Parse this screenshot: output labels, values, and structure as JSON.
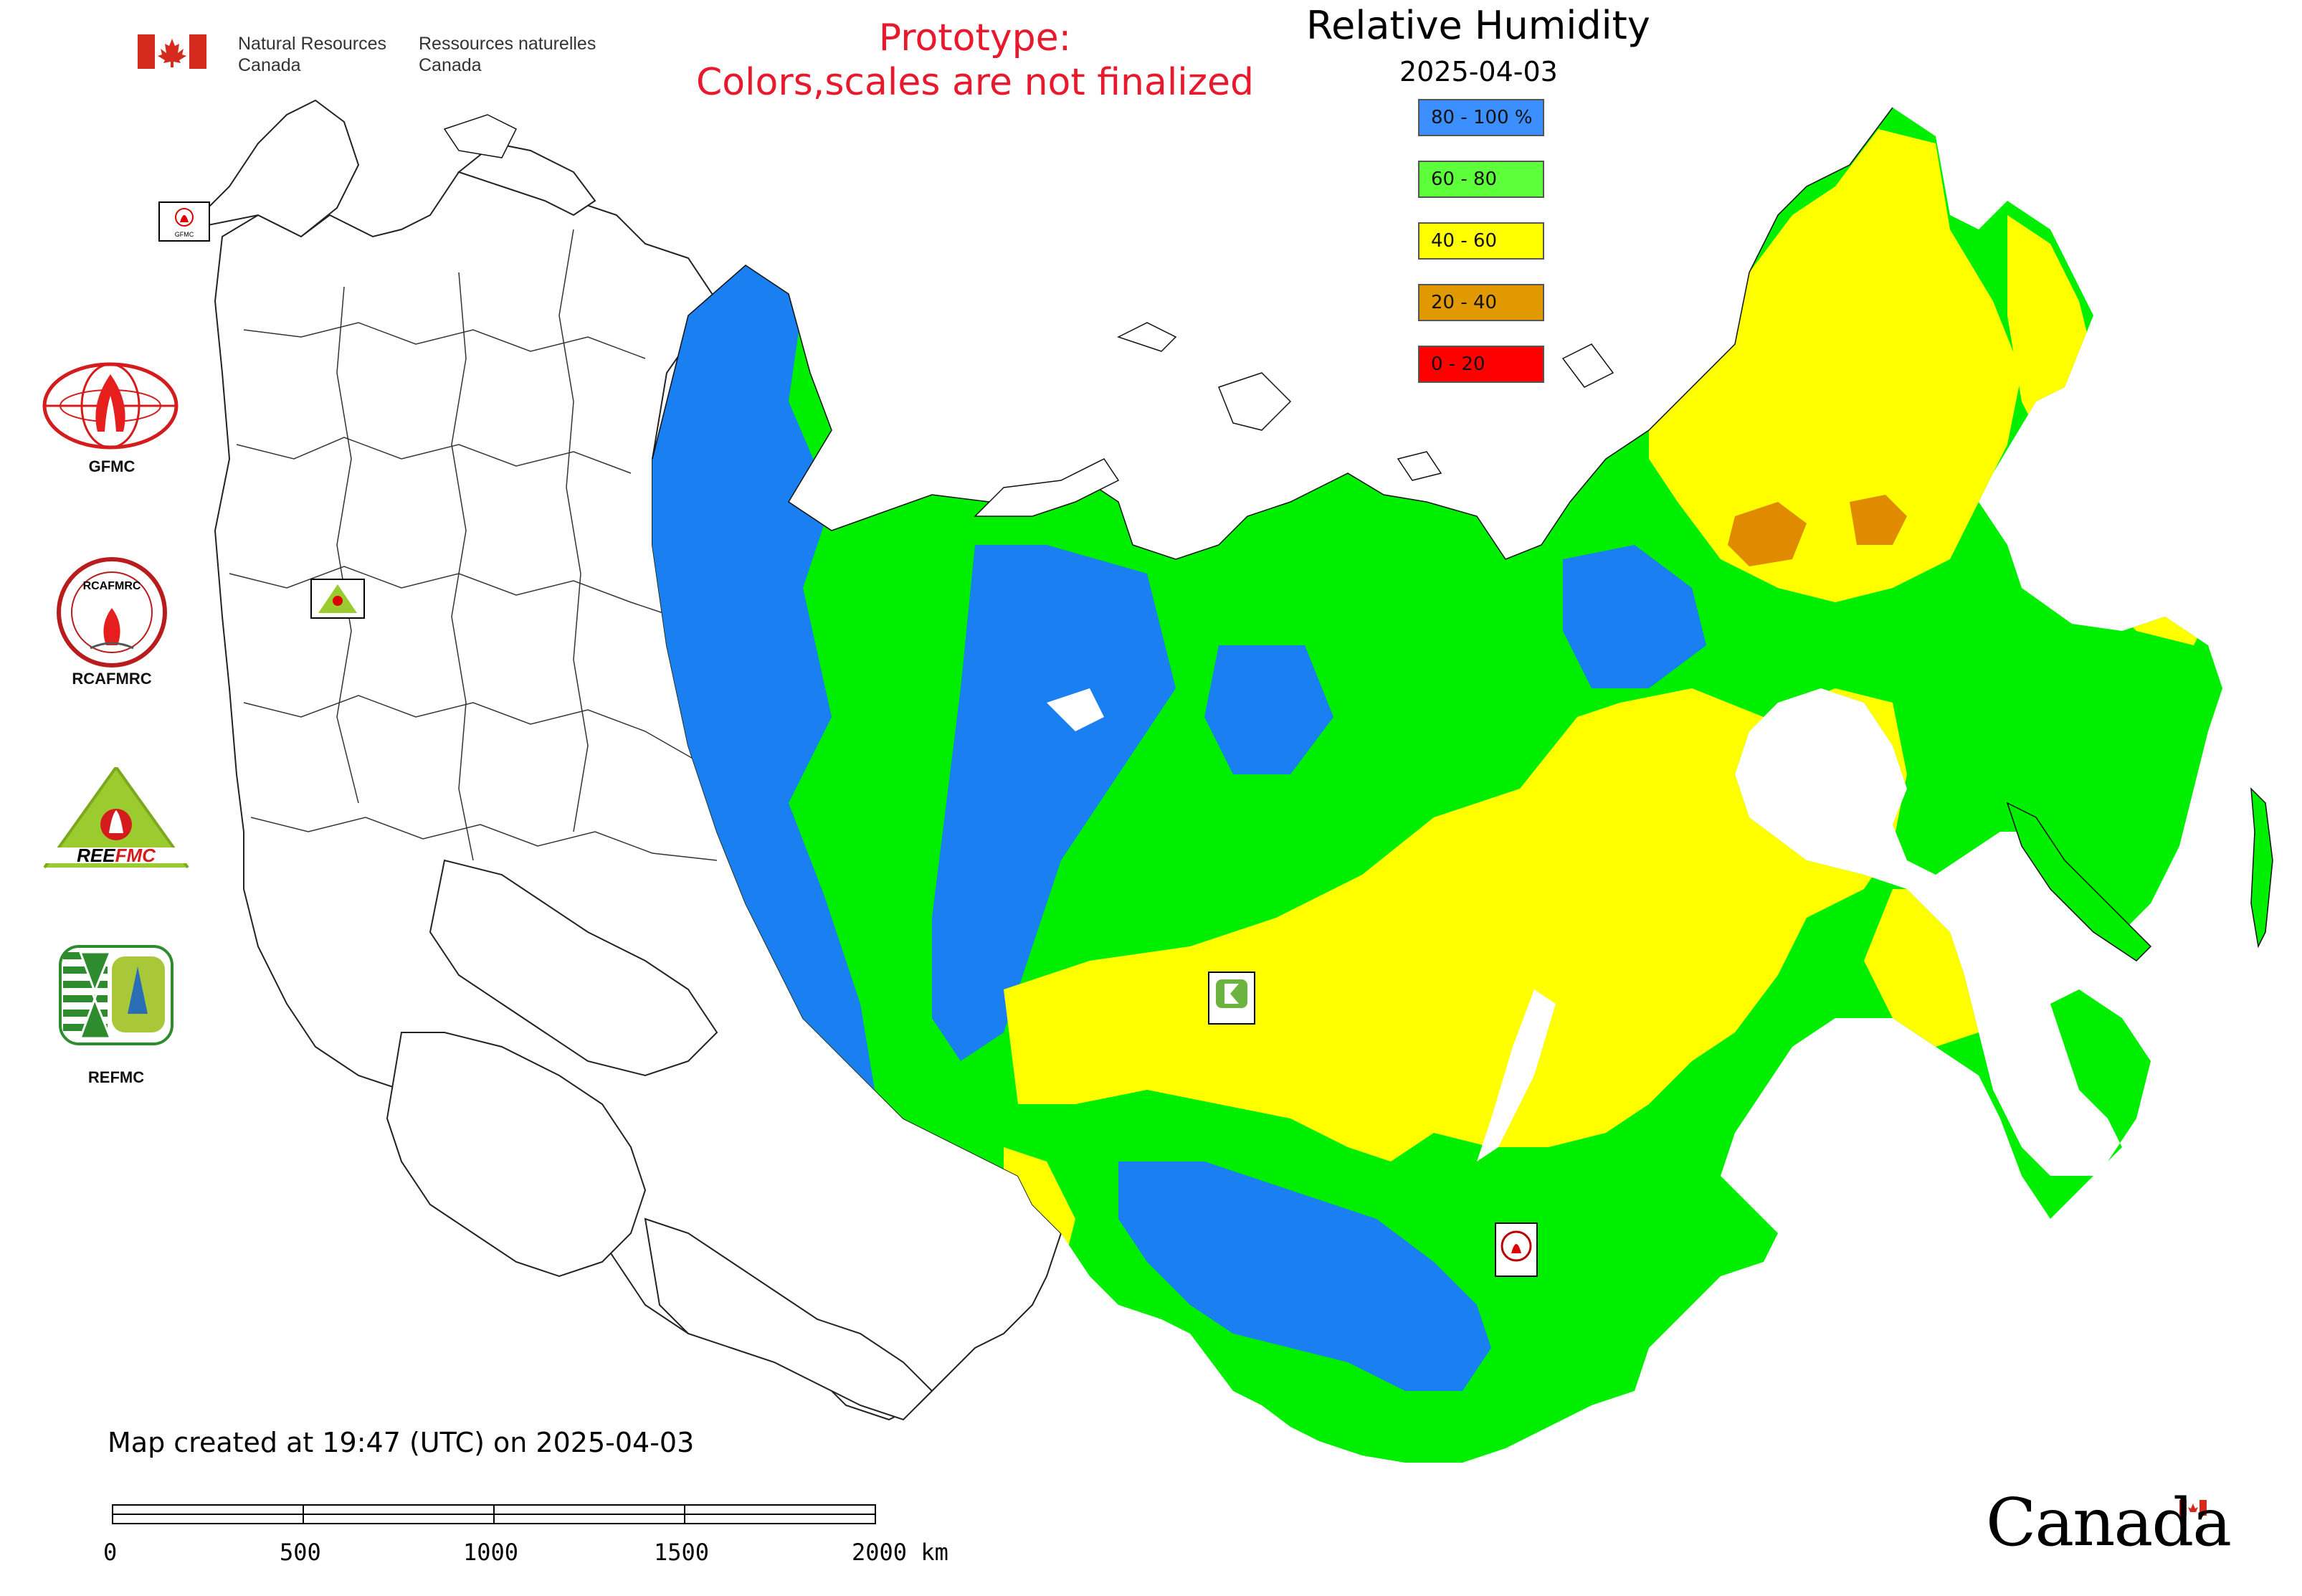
{
  "header": {
    "department_en_line1": "Natural Resources",
    "department_en_line2": "Canada",
    "department_fr_line1": "Ressources naturelles",
    "department_fr_line2": "Canada"
  },
  "prototype_notice": {
    "line1": "Prototype:",
    "line2": "Colors,scales are not finalized",
    "color": "#e8192c"
  },
  "map": {
    "title": "Relative Humidity",
    "date": "2025-04-03"
  },
  "legend": [
    {
      "label": "80 - 100 %",
      "color": "#3b8fff"
    },
    {
      "label": "60 - 80",
      "color": "#5cff3a"
    },
    {
      "label": "40 - 60",
      "color": "#ffff00"
    },
    {
      "label": "20 - 40",
      "color": "#e09a00"
    },
    {
      "label": "0 - 20",
      "color": "#ff0000"
    }
  ],
  "logos": [
    {
      "name": "GFMC"
    },
    {
      "name": "RCAFMRC"
    },
    {
      "name": "REEFMC"
    },
    {
      "name": "REFMC"
    }
  ],
  "map_markers": [
    {
      "name": "GFMC"
    },
    {
      "name": "REEFMC"
    },
    {
      "name": "REFMC"
    },
    {
      "name": "RCAFMRC"
    }
  ],
  "footer": {
    "created_text": "Map created at 19:47 (UTC) on 2025-04-03",
    "scale_ticks": [
      "0",
      "500",
      "1000",
      "1500",
      "2000 km"
    ],
    "wordmark": "Canada"
  }
}
